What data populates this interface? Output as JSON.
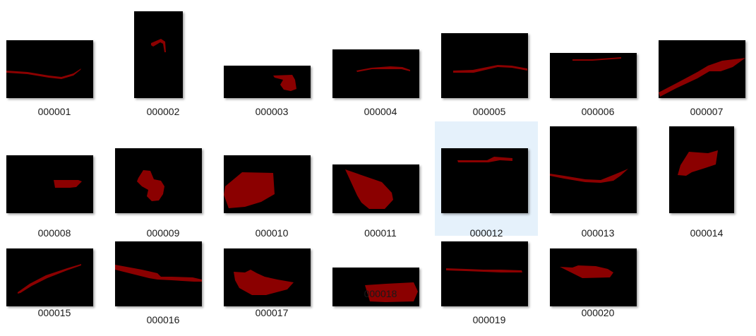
{
  "colors": {
    "background": "#ffffff",
    "thumbnail_background": "#000000",
    "mask_fill": "#8b0000",
    "selection": "#e5f1fb",
    "label_text": "#1a1a1a"
  },
  "files": [
    {
      "name": "000001",
      "selected": false
    },
    {
      "name": "000002",
      "selected": false
    },
    {
      "name": "000003",
      "selected": false
    },
    {
      "name": "000004",
      "selected": false
    },
    {
      "name": "000005",
      "selected": false
    },
    {
      "name": "000006",
      "selected": false
    },
    {
      "name": "000007",
      "selected": false
    },
    {
      "name": "000008",
      "selected": false
    },
    {
      "name": "000009",
      "selected": false
    },
    {
      "name": "000010",
      "selected": false
    },
    {
      "name": "000011",
      "selected": false
    },
    {
      "name": "000012",
      "selected": true
    },
    {
      "name": "000013",
      "selected": false
    },
    {
      "name": "000014",
      "selected": false
    },
    {
      "name": "000015",
      "selected": false
    },
    {
      "name": "000016",
      "selected": false
    },
    {
      "name": "000017",
      "selected": false
    },
    {
      "name": "000018",
      "selected": false
    },
    {
      "name": "000019",
      "selected": false
    },
    {
      "name": "000020",
      "selected": false
    }
  ]
}
